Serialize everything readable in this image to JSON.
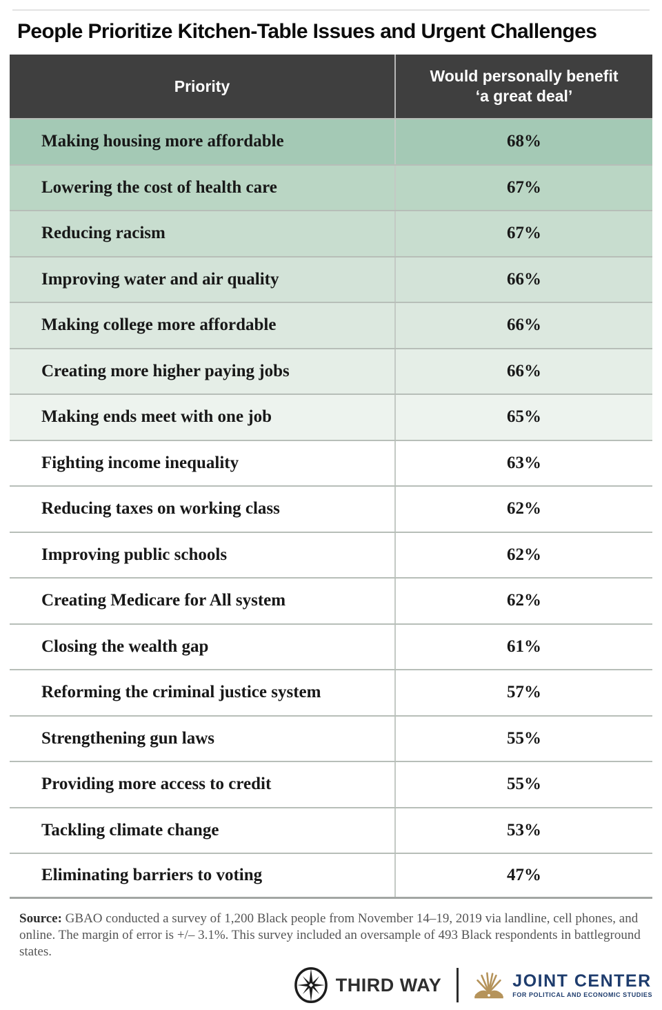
{
  "header": {
    "title": "People Prioritize Kitchen-Table Issues and Urgent Challenges"
  },
  "table": {
    "columns": [
      {
        "label": "Priority"
      },
      {
        "label": "Would personally benefit ‘a great deal’",
        "line1": "Would personally benefit",
        "line2": "‘a great deal’"
      }
    ],
    "rows": [
      {
        "priority": "Making housing more affordable",
        "value": "68%",
        "bg": "#a4c9b5"
      },
      {
        "priority": "Lowering the cost of health care",
        "value": "67%",
        "bg": "#bad6c4"
      },
      {
        "priority": "Reducing racism",
        "value": "67%",
        "bg": "#c8ddcf"
      },
      {
        "priority": "Improving water and air quality",
        "value": "66%",
        "bg": "#d3e3d8"
      },
      {
        "priority": "Making college more affordable",
        "value": "66%",
        "bg": "#dce8df"
      },
      {
        "priority": "Creating more higher paying jobs",
        "value": "66%",
        "bg": "#e5eee7"
      },
      {
        "priority": "Making ends meet with one job",
        "value": "65%",
        "bg": "#edf3ee"
      },
      {
        "priority": "Fighting income inequality",
        "value": "63%",
        "bg": "#ffffff"
      },
      {
        "priority": "Reducing taxes on working class",
        "value": "62%",
        "bg": "#ffffff"
      },
      {
        "priority": "Improving public schools",
        "value": "62%",
        "bg": "#ffffff"
      },
      {
        "priority": "Creating Medicare for All system",
        "value": "62%",
        "bg": "#ffffff"
      },
      {
        "priority": "Closing the wealth gap",
        "value": "61%",
        "bg": "#ffffff"
      },
      {
        "priority": "Reforming the criminal justice system",
        "value": "57%",
        "bg": "#ffffff"
      },
      {
        "priority": "Strengthening gun laws",
        "value": "55%",
        "bg": "#ffffff"
      },
      {
        "priority": "Providing more access to credit",
        "value": "55%",
        "bg": "#ffffff"
      },
      {
        "priority": "Tackling climate change",
        "value": "53%",
        "bg": "#ffffff"
      },
      {
        "priority": "Eliminating barriers to voting",
        "value": "47%",
        "bg": "#ffffff"
      }
    ]
  },
  "chart_data": {
    "type": "table",
    "title": "People Prioritize Kitchen-Table Issues and Urgent Challenges",
    "columns": [
      "Priority",
      "Would personally benefit ‘a great deal’"
    ],
    "categories": [
      "Making housing more affordable",
      "Lowering the cost of health care",
      "Reducing racism",
      "Improving water and air quality",
      "Making college more affordable",
      "Creating more higher paying jobs",
      "Making ends meet with one job",
      "Fighting income inequality",
      "Reducing taxes on working class",
      "Improving public schools",
      "Creating Medicare for All system",
      "Closing the wealth gap",
      "Reforming the criminal justice system",
      "Strengthening gun laws",
      "Providing more access to credit",
      "Tackling climate change",
      "Eliminating barriers to voting"
    ],
    "values": [
      68,
      67,
      67,
      66,
      66,
      66,
      65,
      63,
      62,
      62,
      62,
      61,
      57,
      55,
      55,
      53,
      47
    ]
  },
  "source": {
    "label": "Source:",
    "text": " GBAO conducted a survey of 1,200 Black people from November 14–19, 2019 via landline, cell phones, and online. The margin of error is +/– 3.1%. This survey included an oversample of 493 Black respondents in battleground states."
  },
  "footer": {
    "third_way_label": "THIRD WAY",
    "joint_center_label": "JOINT CENTER",
    "joint_center_tagline": "FOR POLITICAL AND ECONOMIC STUDIES"
  },
  "colors": {
    "header_bg": "#3f3f3f",
    "header_text": "#ffffff",
    "row_green_darkest": "#a4c9b5",
    "row_green_lightest": "#edf3ee",
    "joint_center_navy": "#1e3c6d",
    "joint_center_gold": "#b5935a",
    "third_way_dark": "#2e2e2e"
  }
}
